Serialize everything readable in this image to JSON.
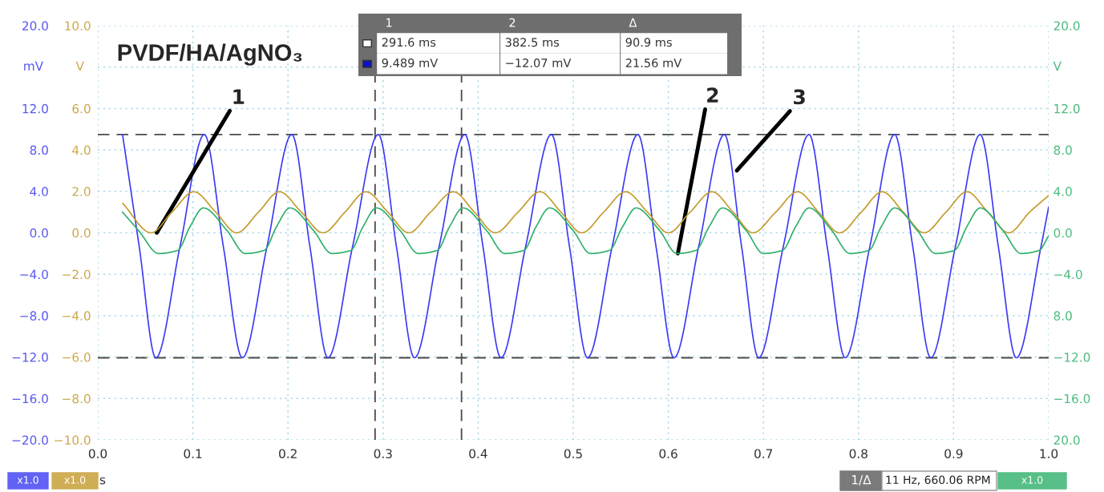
{
  "chart_data": {
    "type": "line",
    "title": "PVDF/HA/AgNO₃",
    "xlabel": "s",
    "ylabel": "mV",
    "y2label": "V",
    "y3label": "V",
    "xlim": [
      0,
      1.0
    ],
    "xticks": [
      {
        "value": 0,
        "label": "0.0"
      },
      {
        "value": 0.1,
        "label": "0.1"
      },
      {
        "value": 0.2,
        "label": "0.2"
      },
      {
        "value": 0.3,
        "label": "0.3"
      },
      {
        "value": 0.4,
        "label": "0.4"
      },
      {
        "value": 0.5,
        "label": "0.5"
      },
      {
        "value": 0.6,
        "label": "0.6"
      },
      {
        "value": 0.7,
        "label": "0.7"
      },
      {
        "value": 0.8,
        "label": "0.8"
      },
      {
        "value": 0.9,
        "label": "0.9"
      },
      {
        "value": 1.0,
        "label": "1.0"
      }
    ],
    "ylim": [
      -20,
      20
    ],
    "yticks": [
      {
        "value": 20,
        "label": "20.0"
      },
      {
        "value": 16,
        "label": null
      },
      {
        "value": 12,
        "label": "12.0"
      },
      {
        "value": 8,
        "label": "8.0"
      },
      {
        "value": 4,
        "label": "4.0"
      },
      {
        "value": 0,
        "label": "0.0"
      },
      {
        "value": -4,
        "label": "−4.0"
      },
      {
        "value": -8,
        "label": "−8.0"
      },
      {
        "value": -12,
        "label": "−12.0"
      },
      {
        "value": -16,
        "label": "−16.0"
      },
      {
        "value": -20,
        "label": "−20.0"
      }
    ],
    "y2lim": [
      -10,
      10
    ],
    "y2ticks": [
      {
        "value": 10,
        "label": "10.0"
      },
      {
        "value": 8,
        "label": null
      },
      {
        "value": 6,
        "label": "6.0"
      },
      {
        "value": 4,
        "label": "4.0"
      },
      {
        "value": 2,
        "label": "2.0"
      },
      {
        "value": 0,
        "label": "0.0"
      },
      {
        "value": -2,
        "label": "−2.0"
      },
      {
        "value": -4,
        "label": "−4.0"
      },
      {
        "value": -6,
        "label": "−6.0"
      },
      {
        "value": -8,
        "label": "−8.0"
      },
      {
        "value": -10,
        "label": "−10.0"
      }
    ],
    "y3lim": [
      -20,
      20
    ],
    "y3ticks": [
      {
        "value": 20,
        "label": "20.0"
      },
      {
        "value": 16,
        "label": null
      },
      {
        "value": 12,
        "label": "12.0"
      },
      {
        "value": 8,
        "label": "8.0"
      },
      {
        "value": 4,
        "label": "4.0"
      },
      {
        "value": 0,
        "label": "0.0"
      },
      {
        "value": -4,
        "label": "−4.0"
      },
      {
        "value": -8,
        "label": "8.0"
      },
      {
        "value": -12,
        "label": "−12.0"
      },
      {
        "value": -16,
        "label": "−16.0"
      },
      {
        "value": -20,
        "label": "20.0"
      }
    ],
    "grid": true,
    "legend": false,
    "line_style": "solid",
    "marker": "none",
    "series": [
      {
        "color": "#3b3bf2",
        "x": [
          0.026,
          0.0435,
          0.061,
          0.0865,
          0.112,
          0.132,
          0.152,
          0.178,
          0.204,
          0.223,
          0.242,
          0.268,
          0.295,
          0.314,
          0.333,
          0.359,
          0.386,
          0.405,
          0.424,
          0.45,
          0.477,
          0.496,
          0.515,
          0.541,
          0.568,
          0.587,
          0.606,
          0.632,
          0.659,
          0.677,
          0.695,
          0.721,
          0.748,
          0.767,
          0.786,
          0.812,
          0.838,
          0.857,
          0.876,
          0.902,
          0.928,
          0.947,
          0.966,
          0.992,
          1.0
        ],
        "values": [
          9.49,
          -1.3,
          -12.07,
          -1.3,
          9.49,
          -1.3,
          -12.07,
          -1.3,
          9.49,
          -1.3,
          -12.07,
          -1.3,
          9.49,
          -1.3,
          -12.07,
          -1.3,
          9.49,
          -1.3,
          -12.07,
          -1.3,
          9.49,
          -1.3,
          -12.07,
          -1.3,
          9.49,
          -1.3,
          -12.07,
          -1.3,
          9.49,
          -1.3,
          -12.07,
          -1.3,
          9.49,
          -1.3,
          -12.07,
          -1.3,
          9.49,
          -1.3,
          -12.07,
          -1.3,
          9.49,
          -1.3,
          -12.07,
          -1.3,
          2.5
        ]
      },
      {
        "color": "#c49a2c",
        "axis": "y2",
        "x": [
          0.026,
          0.056,
          0.078,
          0.101,
          0.124,
          0.146,
          0.169,
          0.191,
          0.214,
          0.237,
          0.26,
          0.282,
          0.305,
          0.327,
          0.35,
          0.374,
          0.396,
          0.418,
          0.442,
          0.465,
          0.487,
          0.509,
          0.532,
          0.555,
          0.578,
          0.6,
          0.623,
          0.646,
          0.668,
          0.689,
          0.713,
          0.736,
          0.758,
          0.78,
          0.803,
          0.825,
          0.847,
          0.869,
          0.892,
          0.914,
          0.936,
          0.958,
          0.98,
          1.0
        ],
        "values": [
          1.43,
          0.0,
          1.0,
          1.98,
          1.0,
          0.0,
          1.0,
          1.98,
          1.0,
          0.0,
          1.0,
          1.98,
          1.0,
          0.0,
          1.0,
          1.98,
          1.0,
          0.0,
          1.0,
          1.98,
          1.0,
          0.0,
          1.0,
          1.98,
          1.0,
          0.0,
          1.0,
          1.98,
          1.0,
          0.0,
          1.0,
          1.98,
          1.0,
          0.0,
          1.0,
          1.98,
          1.0,
          0.0,
          1.0,
          1.98,
          1.0,
          0.0,
          1.0,
          1.8
        ]
      },
      {
        "color": "#2eb06a",
        "axis": "y3",
        "x": [
          0.026,
          0.043,
          0.064,
          0.084,
          0.097,
          0.111,
          0.136,
          0.155,
          0.175,
          0.188,
          0.202,
          0.227,
          0.246,
          0.266,
          0.279,
          0.293,
          0.318,
          0.337,
          0.357,
          0.37,
          0.384,
          0.409,
          0.428,
          0.448,
          0.461,
          0.475,
          0.5,
          0.518,
          0.538,
          0.552,
          0.566,
          0.591,
          0.609,
          0.629,
          0.643,
          0.657,
          0.682,
          0.7,
          0.72,
          0.734,
          0.748,
          0.772,
          0.791,
          0.811,
          0.824,
          0.838,
          0.862,
          0.881,
          0.901,
          0.914,
          0.928,
          0.952,
          0.971,
          0.99,
          1.0
        ],
        "values": [
          2.0,
          0.2,
          -2.0,
          -1.7,
          0.6,
          2.4,
          0.2,
          -2.0,
          -1.7,
          0.6,
          2.4,
          0.2,
          -2.0,
          -1.7,
          0.6,
          2.4,
          0.2,
          -2.0,
          -1.7,
          0.6,
          2.4,
          0.2,
          -2.0,
          -1.7,
          0.6,
          2.4,
          0.2,
          -2.0,
          -1.7,
          0.6,
          2.4,
          0.2,
          -2.0,
          -1.7,
          0.6,
          2.4,
          0.2,
          -2.0,
          -1.7,
          0.6,
          2.4,
          0.2,
          -2.0,
          -1.7,
          0.6,
          2.4,
          0.2,
          -2.0,
          -1.7,
          0.6,
          2.4,
          0.2,
          -2.0,
          -1.7,
          -0.3
        ]
      }
    ],
    "ref_lines": [
      {
        "axis": "x",
        "value": 0.2916,
        "color": "#4a4a4a",
        "line_style": "dashed"
      },
      {
        "axis": "x",
        "value": 0.3825,
        "color": "#4a4a4a",
        "line_style": "dashed"
      },
      {
        "axis": "y",
        "value": 9.489,
        "color": "#4a4a4a",
        "line_style": "dashed"
      },
      {
        "axis": "y",
        "value": -12.07,
        "color": "#4a4a4a",
        "line_style": "dashed"
      }
    ],
    "annotations": [
      "1",
      "2",
      "Δ",
      "291.6 ms",
      "382.5 ms",
      "90.9 ms",
      "9.489 mV",
      "−12.07 mV",
      "21.56 mV",
      "1/Δ",
      "11 Hz, 660.06 RPM",
      "x1.0",
      "x1.0",
      "x1.0",
      {
        "text": "1",
        "x": 0.062,
        "y": 0.0
      },
      {
        "text": "2",
        "x": 0.61,
        "y": -2.0
      },
      {
        "text": "3",
        "x": 0.672,
        "y": 6.0
      }
    ]
  }
}
